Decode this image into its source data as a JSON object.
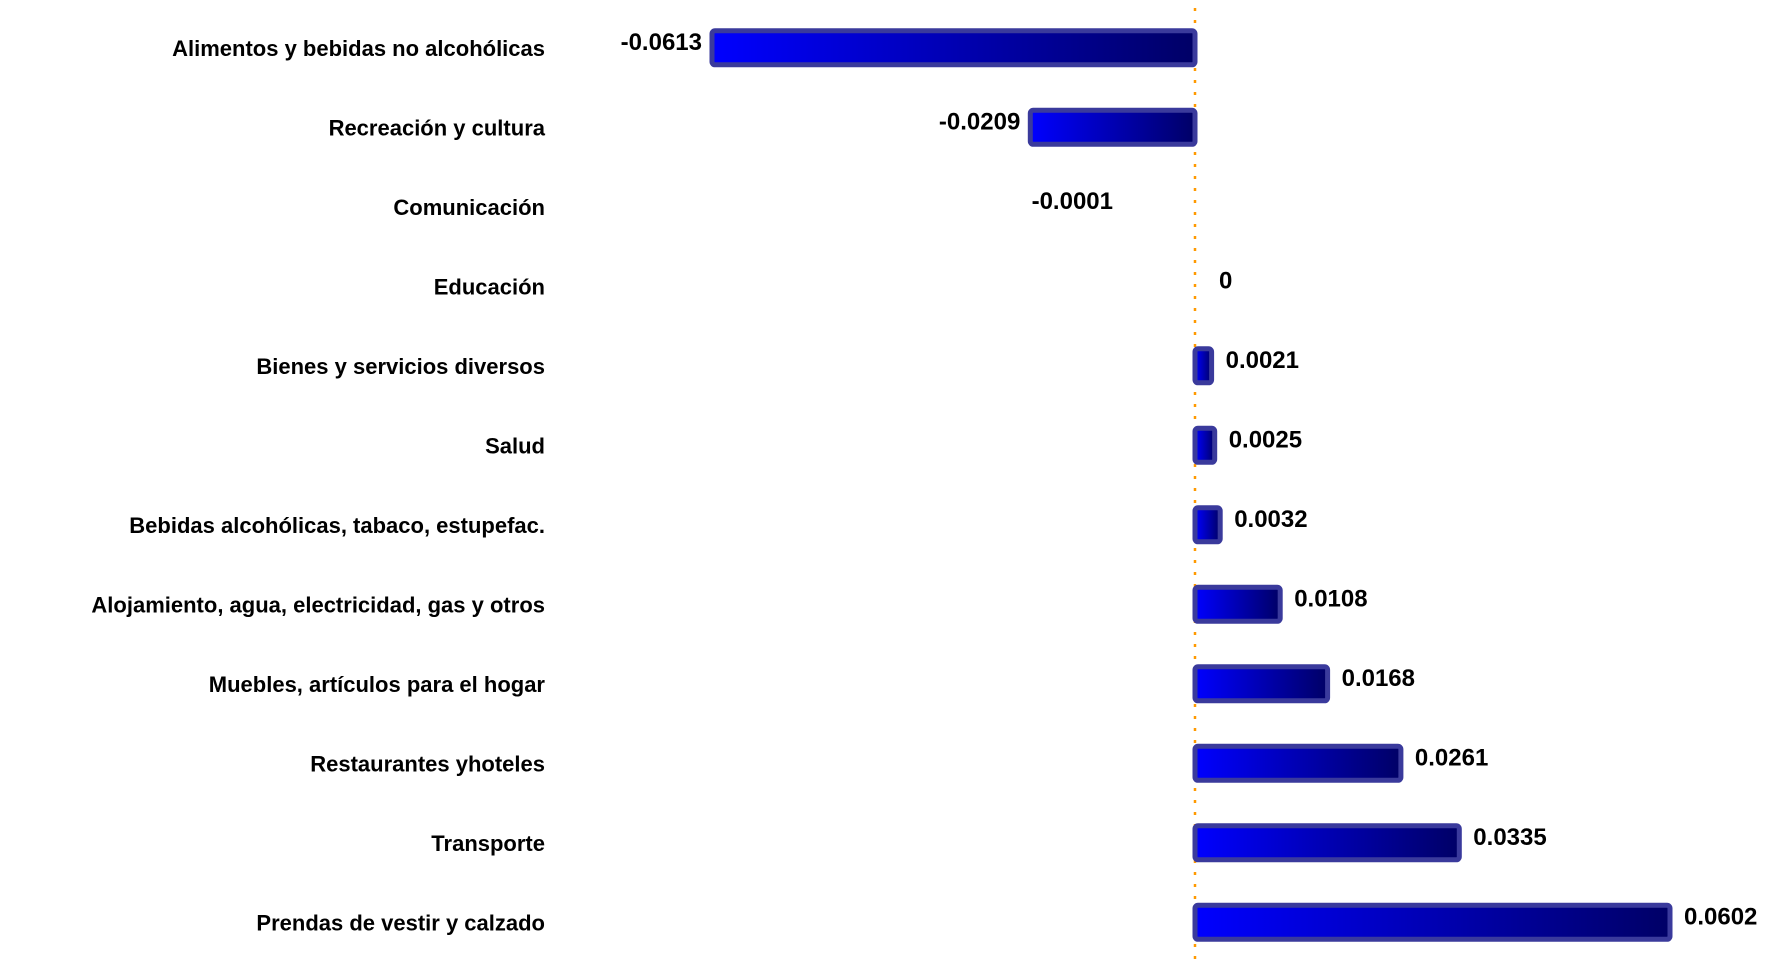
{
  "chart_data": {
    "type": "bar",
    "orientation": "horizontal",
    "title": "",
    "xlabel": "",
    "ylabel": "",
    "categories": [
      "Alimentos y bebidas no alcohólicas",
      "Recreación y cultura",
      "Comunicación",
      "Educación",
      "Bienes y servicios diversos",
      "Salud",
      "Bebidas alcohólicas, tabaco, estupefac.",
      "Alojamiento, agua, electricidad, gas y otros",
      "Muebles, artículos para el hogar",
      "Restaurantes yhoteles",
      "Transporte",
      "Prendas de vestir y calzado"
    ],
    "values": [
      -0.0613,
      -0.0209,
      -0.0001,
      0,
      0.0021,
      0.0025,
      0.0032,
      0.0108,
      0.0168,
      0.0261,
      0.0335,
      0.0602
    ],
    "value_labels": [
      "-0.0613",
      "-0.0209",
      "-0.0001",
      "0",
      "0.0021",
      "0.0025",
      "0.0032",
      "0.0108",
      "0.0168",
      "0.0261",
      "0.0335",
      "0.0602"
    ],
    "xlim": [
      -0.0613,
      0.0602
    ],
    "grid": false,
    "legend": "none",
    "zero_line": "dotted",
    "colors": {
      "bar_fill_start": "#0000ff",
      "bar_fill_end": "#000066",
      "bar_border": "#3a3a9c",
      "zero_line": "#ff9900",
      "text": "#000000"
    }
  }
}
